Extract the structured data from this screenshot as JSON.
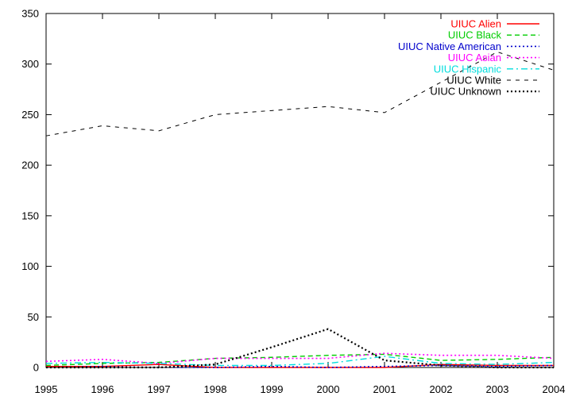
{
  "chart_data": {
    "type": "line",
    "title": "",
    "xlabel": "",
    "ylabel": "",
    "x": [
      1995,
      1996,
      1997,
      1998,
      1999,
      2000,
      2001,
      2002,
      2003,
      2004
    ],
    "xlim": [
      1995,
      2004
    ],
    "ylim": [
      0,
      350
    ],
    "x_ticks": [
      "1995",
      "1996",
      "1997",
      "1998",
      "1999",
      "2000",
      "2001",
      "2002",
      "2003",
      "2004"
    ],
    "y_ticks": [
      "0",
      "50",
      "100",
      "150",
      "200",
      "250",
      "300",
      "350"
    ],
    "grid": false,
    "legend_position": "top-right",
    "series": [
      {
        "name": "UIUC Alien",
        "color": "#ff0000",
        "dash": "solid",
        "values": [
          1,
          1,
          3,
          0,
          0,
          0,
          0,
          3,
          2,
          2
        ]
      },
      {
        "name": "UIUC Black",
        "color": "#00cc00",
        "dash": "dashed",
        "values": [
          2,
          4,
          5,
          9,
          10,
          12,
          13,
          7,
          8,
          10
        ]
      },
      {
        "name": "UIUC Native American",
        "color": "#0000cc",
        "dash": "dotted",
        "values": [
          0,
          1,
          0,
          0,
          1,
          0,
          1,
          2,
          1,
          2
        ]
      },
      {
        "name": "UIUC Asian",
        "color": "#ff00ff",
        "dash": "dotted",
        "values": [
          6,
          8,
          4,
          9,
          9,
          9,
          14,
          12,
          12,
          9
        ]
      },
      {
        "name": "UIUC Hispanic",
        "color": "#00dddd",
        "dash": "dashdot",
        "values": [
          4,
          5,
          4,
          2,
          2,
          4,
          11,
          4,
          3,
          5
        ]
      },
      {
        "name": "UIUC White",
        "color": "#000000",
        "dash": "longdash",
        "values": [
          229,
          239,
          234,
          250,
          254,
          258,
          252,
          282,
          312,
          294
        ]
      },
      {
        "name": "UIUC Unknown",
        "color": "#000000",
        "dash": "dotted-heavy",
        "values": [
          0,
          0,
          0,
          3,
          20,
          38,
          7,
          2,
          0,
          0
        ]
      }
    ]
  }
}
